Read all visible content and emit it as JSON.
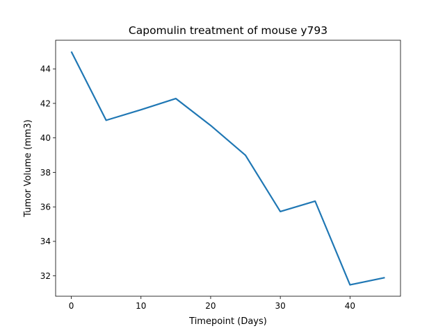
{
  "chart_data": {
    "type": "line",
    "title": "Capomulin treatment of mouse y793",
    "xlabel": "Timepoint (Days)",
    "ylabel": "Tumor Volume (mm3)",
    "x": [
      0,
      5,
      10,
      15,
      20,
      25,
      30,
      35,
      40,
      45
    ],
    "series": [
      {
        "values": [
          45.0,
          41.02,
          41.63,
          42.28,
          40.72,
          38.99,
          35.73,
          36.33,
          31.48,
          31.9
        ]
      }
    ],
    "xlim": [
      -2.25,
      47.25
    ],
    "ylim": [
      30.82,
      45.66
    ],
    "xticks": [
      0,
      10,
      20,
      30,
      40
    ],
    "yticks": [
      32,
      34,
      36,
      38,
      40,
      42,
      44
    ],
    "xtick_labels": [
      "0",
      "10",
      "20",
      "30",
      "40"
    ],
    "ytick_labels": [
      "32",
      "34",
      "36",
      "38",
      "40",
      "42",
      "44"
    ],
    "grid": false,
    "colors": {
      "line": "#1f77b4",
      "axes": "#000000",
      "background": "#ffffff"
    }
  }
}
